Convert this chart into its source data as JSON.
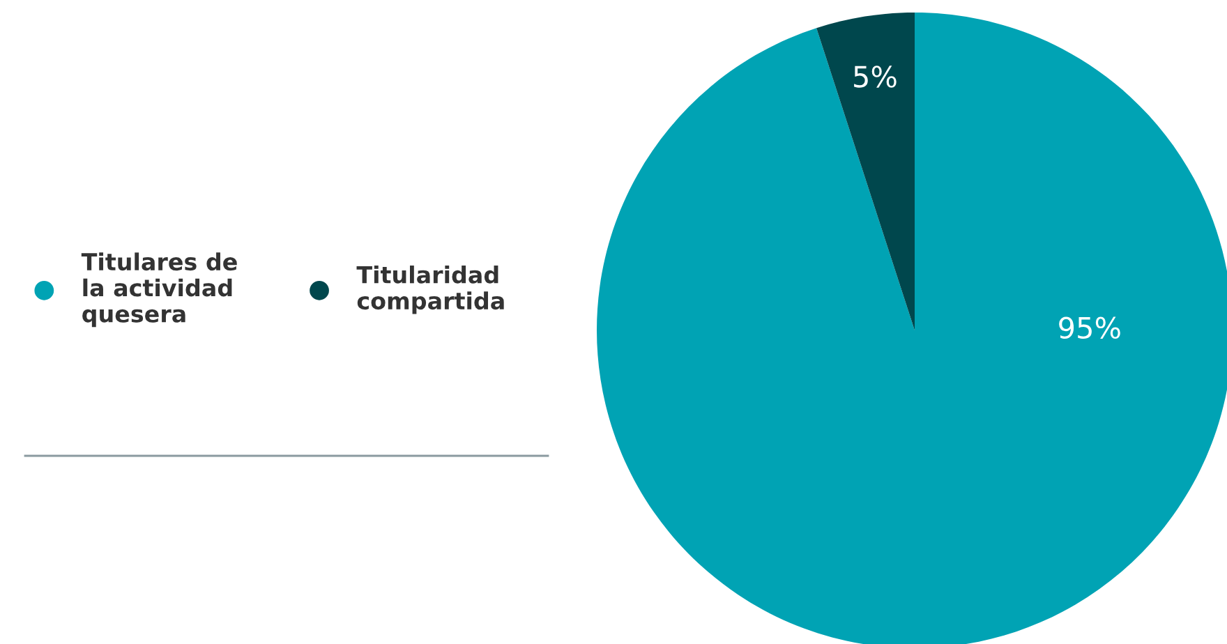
{
  "chart_data": {
    "type": "pie",
    "categories": [
      "Titulares de\nla actividad\nquesera",
      "Titularidad\ncompartida"
    ],
    "values": [
      95,
      5
    ],
    "colors": [
      "#00a3b4",
      "#00474d"
    ],
    "value_labels": [
      "95%",
      "5%"
    ],
    "legend": "left"
  }
}
